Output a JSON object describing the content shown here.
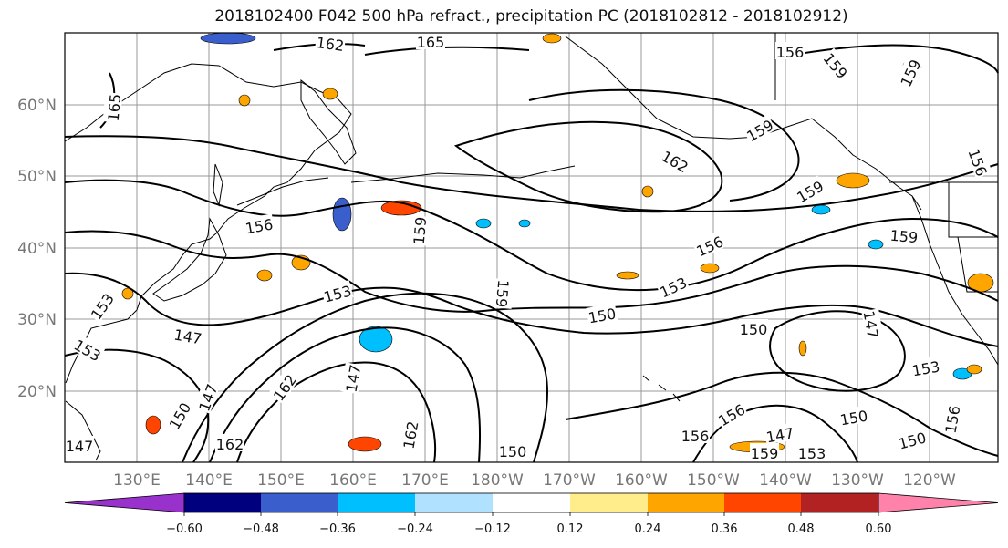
{
  "title": "2018102400 F042 500 hPa refract., precipitation PC (2018102812 - 2018102912)",
  "map": {
    "lat_labels": [
      "60°N",
      "50°N",
      "40°N",
      "30°N",
      "20°N"
    ],
    "lon_labels": [
      "130°E",
      "140°E",
      "150°E",
      "160°E",
      "170°E",
      "180°W",
      "170°W",
      "160°W",
      "150°W",
      "140°W",
      "130°W",
      "120°W"
    ],
    "contour_labels": [
      {
        "text": "162"
      },
      {
        "text": "165"
      },
      {
        "text": "156"
      },
      {
        "text": "159"
      },
      {
        "text": "159"
      },
      {
        "text": "165"
      },
      {
        "text": "159"
      },
      {
        "text": "162"
      },
      {
        "text": "156"
      },
      {
        "text": "159"
      },
      {
        "text": "156"
      },
      {
        "text": "159"
      },
      {
        "text": "156"
      },
      {
        "text": "159"
      },
      {
        "text": "156"
      },
      {
        "text": "153"
      },
      {
        "text": "153"
      },
      {
        "text": "159"
      },
      {
        "text": "150"
      },
      {
        "text": "153"
      },
      {
        "text": "150"
      },
      {
        "text": "147"
      },
      {
        "text": "147"
      },
      {
        "text": "153"
      },
      {
        "text": "153"
      },
      {
        "text": "147"
      },
      {
        "text": "150"
      },
      {
        "text": "150"
      },
      {
        "text": "162"
      },
      {
        "text": "162"
      },
      {
        "text": "147"
      },
      {
        "text": "162"
      },
      {
        "text": "156"
      },
      {
        "text": "156"
      },
      {
        "text": "150"
      },
      {
        "text": "147"
      },
      {
        "text": "159"
      },
      {
        "text": "153"
      },
      {
        "text": "150"
      },
      {
        "text": "147"
      }
    ]
  },
  "colorbar": {
    "ticks": [
      "−0.60",
      "−0.48",
      "−0.36",
      "−0.24",
      "−0.12",
      "0.12",
      "0.24",
      "0.36",
      "0.48",
      "0.60"
    ],
    "colors": [
      "#9932cc",
      "#00007f",
      "#3a5fcd",
      "#00bfff",
      "#b0e2ff",
      "#ffffff",
      "#ffec8b",
      "#ffa500",
      "#ff4500",
      "#b22222",
      "#ff82ab"
    ]
  }
}
